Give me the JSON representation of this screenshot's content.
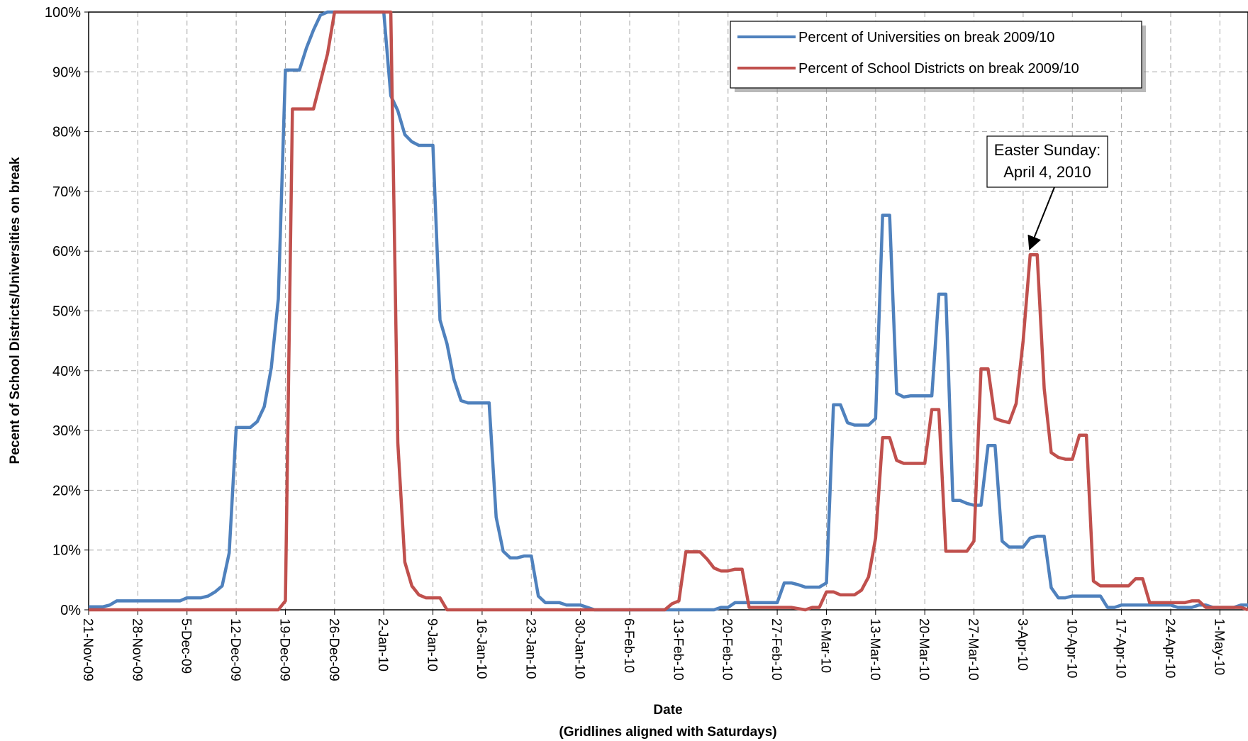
{
  "chart_data": {
    "type": "line",
    "xlabel": "Date",
    "xlabel_sub": "(Gridlines aligned with Saturdays)",
    "ylabel": "Pecent of School Districts/Universities on break",
    "x_start": "2009-11-21",
    "x_end": "2010-05-05",
    "ylim": [
      0,
      100
    ],
    "y_ticks": [
      0,
      10,
      20,
      30,
      40,
      50,
      60,
      70,
      80,
      90,
      100
    ],
    "y_tick_labels": [
      "0%",
      "10%",
      "20%",
      "30%",
      "40%",
      "50%",
      "60%",
      "70%",
      "80%",
      "90%",
      "100%"
    ],
    "x_ticks": [
      "2009-11-21",
      "2009-11-28",
      "2009-12-05",
      "2009-12-12",
      "2009-12-19",
      "2009-12-26",
      "2010-01-02",
      "2010-01-09",
      "2010-01-16",
      "2010-01-23",
      "2010-01-30",
      "2010-02-06",
      "2010-02-13",
      "2010-02-20",
      "2010-02-27",
      "2010-03-06",
      "2010-03-13",
      "2010-03-20",
      "2010-03-27",
      "2010-04-03",
      "2010-04-10",
      "2010-04-17",
      "2010-04-24",
      "2010-05-01"
    ],
    "x_tick_labels": [
      "21-Nov-09",
      "28-Nov-09",
      "5-Dec-09",
      "12-Dec-09",
      "19-Dec-09",
      "26-Dec-09",
      "2-Jan-10",
      "9-Jan-10",
      "16-Jan-10",
      "23-Jan-10",
      "30-Jan-10",
      "6-Feb-10",
      "13-Feb-10",
      "20-Feb-10",
      "27-Feb-10",
      "6-Mar-10",
      "13-Mar-10",
      "20-Mar-10",
      "27-Mar-10",
      "3-Apr-10",
      "10-Apr-10",
      "17-Apr-10",
      "24-Apr-10",
      "1-May-10"
    ],
    "grid": true,
    "legend_position": "top-right",
    "series": [
      {
        "name": "Percent of Universities on break 2009/10",
        "color": "#4f81bd",
        "points": [
          [
            "2009-11-21",
            0.5
          ],
          [
            "2009-11-23",
            0.5
          ],
          [
            "2009-11-24",
            0.8
          ],
          [
            "2009-11-25",
            1.5
          ],
          [
            "2009-12-04",
            1.5
          ],
          [
            "2009-12-05",
            2
          ],
          [
            "2009-12-07",
            2
          ],
          [
            "2009-12-08",
            2.3
          ],
          [
            "2009-12-09",
            3
          ],
          [
            "2009-12-10",
            4
          ],
          [
            "2009-12-11",
            9.5
          ],
          [
            "2009-12-12",
            30.5
          ],
          [
            "2009-12-14",
            30.5
          ],
          [
            "2009-12-15",
            31.5
          ],
          [
            "2009-12-16",
            34
          ],
          [
            "2009-12-17",
            40.5
          ],
          [
            "2009-12-18",
            52
          ],
          [
            "2009-12-19",
            90.3
          ],
          [
            "2009-12-21",
            90.3
          ],
          [
            "2009-12-22",
            94
          ],
          [
            "2009-12-23",
            97
          ],
          [
            "2009-12-24",
            99.5
          ],
          [
            "2009-12-25",
            100
          ],
          [
            "2010-01-02",
            100
          ],
          [
            "2010-01-03",
            86
          ],
          [
            "2010-01-04",
            83.5
          ],
          [
            "2010-01-05",
            79.5
          ],
          [
            "2010-01-06",
            78.3
          ],
          [
            "2010-01-07",
            77.7
          ],
          [
            "2010-01-09",
            77.7
          ],
          [
            "2010-01-10",
            48.5
          ],
          [
            "2010-01-11",
            44.5
          ],
          [
            "2010-01-12",
            38.5
          ],
          [
            "2010-01-13",
            35
          ],
          [
            "2010-01-14",
            34.6
          ],
          [
            "2010-01-17",
            34.6
          ],
          [
            "2010-01-18",
            15.5
          ],
          [
            "2010-01-19",
            9.8
          ],
          [
            "2010-01-20",
            8.7
          ],
          [
            "2010-01-21",
            8.7
          ],
          [
            "2010-01-22",
            9
          ],
          [
            "2010-01-23",
            9
          ],
          [
            "2010-01-24",
            2.3
          ],
          [
            "2010-01-25",
            1.2
          ],
          [
            "2010-01-27",
            1.2
          ],
          [
            "2010-01-28",
            0.8
          ],
          [
            "2010-01-30",
            0.8
          ],
          [
            "2010-02-01",
            0
          ],
          [
            "2010-02-18",
            0
          ],
          [
            "2010-02-19",
            0.4
          ],
          [
            "2010-02-20",
            0.4
          ],
          [
            "2010-02-21",
            1.2
          ],
          [
            "2010-02-27",
            1.2
          ],
          [
            "2010-02-28",
            4.5
          ],
          [
            "2010-03-01",
            4.5
          ],
          [
            "2010-03-02",
            4.2
          ],
          [
            "2010-03-03",
            3.8
          ],
          [
            "2010-03-05",
            3.8
          ],
          [
            "2010-03-06",
            4.5
          ],
          [
            "2010-03-07",
            34.3
          ],
          [
            "2010-03-08",
            34.3
          ],
          [
            "2010-03-09",
            31.3
          ],
          [
            "2010-03-10",
            30.9
          ],
          [
            "2010-03-12",
            30.9
          ],
          [
            "2010-03-13",
            32
          ],
          [
            "2010-03-14",
            66
          ],
          [
            "2010-03-15",
            66
          ],
          [
            "2010-03-16",
            36.2
          ],
          [
            "2010-03-17",
            35.6
          ],
          [
            "2010-03-18",
            35.8
          ],
          [
            "2010-03-21",
            35.8
          ],
          [
            "2010-03-22",
            52.8
          ],
          [
            "2010-03-23",
            52.8
          ],
          [
            "2010-03-24",
            18.3
          ],
          [
            "2010-03-25",
            18.3
          ],
          [
            "2010-03-26",
            17.8
          ],
          [
            "2010-03-27",
            17.5
          ],
          [
            "2010-03-28",
            17.5
          ],
          [
            "2010-03-29",
            27.5
          ],
          [
            "2010-03-30",
            27.5
          ],
          [
            "2010-03-31",
            11.5
          ],
          [
            "2010-04-01",
            10.5
          ],
          [
            "2010-04-03",
            10.5
          ],
          [
            "2010-04-04",
            12
          ],
          [
            "2010-04-05",
            12.3
          ],
          [
            "2010-04-06",
            12.3
          ],
          [
            "2010-04-07",
            3.7
          ],
          [
            "2010-04-08",
            2
          ],
          [
            "2010-04-09",
            2
          ],
          [
            "2010-04-10",
            2.3
          ],
          [
            "2010-04-14",
            2.3
          ],
          [
            "2010-04-15",
            0.4
          ],
          [
            "2010-04-16",
            0.4
          ],
          [
            "2010-04-17",
            0.8
          ],
          [
            "2010-04-24",
            0.8
          ],
          [
            "2010-04-25",
            0.4
          ],
          [
            "2010-04-27",
            0.4
          ],
          [
            "2010-04-28",
            0.8
          ],
          [
            "2010-04-29",
            0.8
          ],
          [
            "2010-04-30",
            0.4
          ],
          [
            "2010-05-03",
            0.4
          ],
          [
            "2010-05-04",
            0.8
          ],
          [
            "2010-05-05",
            0.8
          ]
        ]
      },
      {
        "name": "Percent of School Districts on break 2009/10",
        "color": "#c0504d",
        "points": [
          [
            "2009-11-21",
            0
          ],
          [
            "2009-12-18",
            0
          ],
          [
            "2009-12-19",
            1.5
          ],
          [
            "2009-12-20",
            83.8
          ],
          [
            "2009-12-23",
            83.8
          ],
          [
            "2009-12-25",
            93
          ],
          [
            "2009-12-26",
            100
          ],
          [
            "2010-01-03",
            100
          ],
          [
            "2010-01-04",
            28
          ],
          [
            "2010-01-05",
            8
          ],
          [
            "2010-01-06",
            4
          ],
          [
            "2010-01-07",
            2.5
          ],
          [
            "2010-01-08",
            2
          ],
          [
            "2010-01-10",
            2
          ],
          [
            "2010-01-11",
            0
          ],
          [
            "2010-02-11",
            0
          ],
          [
            "2010-02-12",
            1
          ],
          [
            "2010-02-13",
            1.5
          ],
          [
            "2010-02-14",
            9.7
          ],
          [
            "2010-02-16",
            9.7
          ],
          [
            "2010-02-17",
            8.5
          ],
          [
            "2010-02-18",
            7
          ],
          [
            "2010-02-19",
            6.5
          ],
          [
            "2010-02-20",
            6.5
          ],
          [
            "2010-02-21",
            6.8
          ],
          [
            "2010-02-22",
            6.8
          ],
          [
            "2010-02-23",
            0.4
          ],
          [
            "2010-03-01",
            0.4
          ],
          [
            "2010-03-02",
            0.2
          ],
          [
            "2010-03-03",
            0
          ],
          [
            "2010-03-04",
            0.4
          ],
          [
            "2010-03-05",
            0.4
          ],
          [
            "2010-03-06",
            3
          ],
          [
            "2010-03-07",
            3
          ],
          [
            "2010-03-08",
            2.5
          ],
          [
            "2010-03-10",
            2.5
          ],
          [
            "2010-03-11",
            3.3
          ],
          [
            "2010-03-12",
            5.5
          ],
          [
            "2010-03-13",
            12
          ],
          [
            "2010-03-14",
            28.8
          ],
          [
            "2010-03-15",
            28.8
          ],
          [
            "2010-03-16",
            25
          ],
          [
            "2010-03-17",
            24.5
          ],
          [
            "2010-03-20",
            24.5
          ],
          [
            "2010-03-21",
            33.5
          ],
          [
            "2010-03-22",
            33.5
          ],
          [
            "2010-03-23",
            9.8
          ],
          [
            "2010-03-26",
            9.8
          ],
          [
            "2010-03-27",
            11.5
          ],
          [
            "2010-03-28",
            40.3
          ],
          [
            "2010-03-29",
            40.3
          ],
          [
            "2010-03-30",
            32
          ],
          [
            "2010-03-31",
            31.6
          ],
          [
            "2010-04-01",
            31.3
          ],
          [
            "2010-04-02",
            34.5
          ],
          [
            "2010-04-03",
            45
          ],
          [
            "2010-04-04",
            59.4
          ],
          [
            "2010-04-05",
            59.4
          ],
          [
            "2010-04-06",
            37
          ],
          [
            "2010-04-07",
            26.3
          ],
          [
            "2010-04-08",
            25.5
          ],
          [
            "2010-04-09",
            25.2
          ],
          [
            "2010-04-10",
            25.2
          ],
          [
            "2010-04-11",
            29.2
          ],
          [
            "2010-04-12",
            29.2
          ],
          [
            "2010-04-13",
            4.8
          ],
          [
            "2010-04-14",
            4
          ],
          [
            "2010-04-18",
            4
          ],
          [
            "2010-04-19",
            5.2
          ],
          [
            "2010-04-20",
            5.2
          ],
          [
            "2010-04-21",
            1.2
          ],
          [
            "2010-04-26",
            1.2
          ],
          [
            "2010-04-27",
            1.5
          ],
          [
            "2010-04-28",
            1.5
          ],
          [
            "2010-04-29",
            0.4
          ],
          [
            "2010-05-04",
            0.4
          ],
          [
            "2010-05-05",
            0
          ]
        ]
      }
    ],
    "annotations": [
      {
        "lines": [
          "Easter Sunday:",
          "April 4, 2010"
        ],
        "x": "2010-04-04",
        "y": 59.4
      }
    ]
  }
}
